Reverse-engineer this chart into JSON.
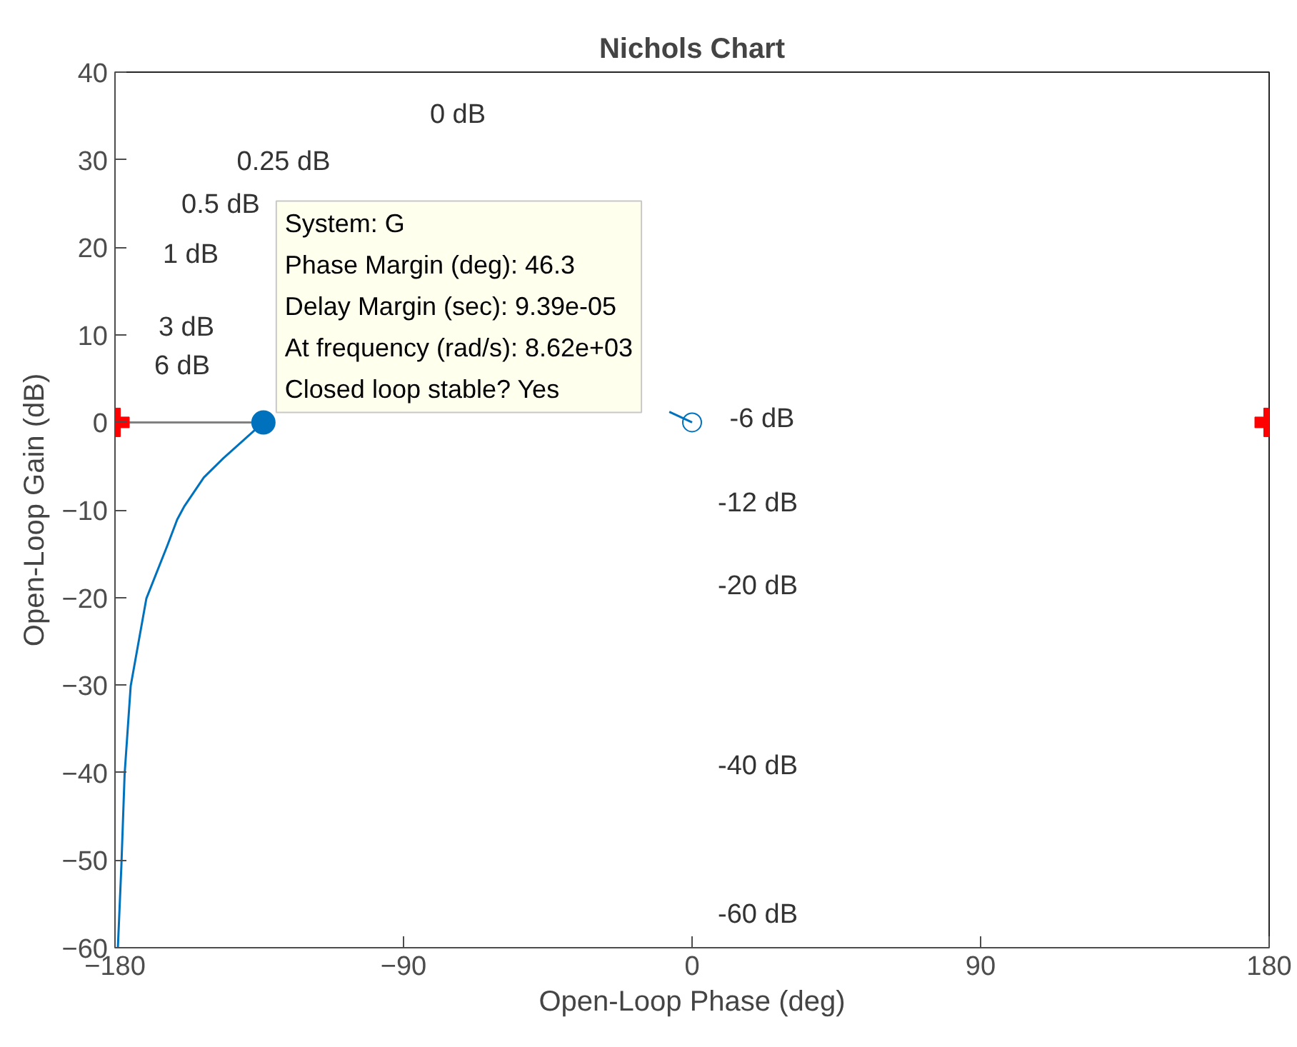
{
  "chart_data": {
    "type": "line",
    "title": "Nichols Chart",
    "xlabel": "Open-Loop Phase (deg)",
    "ylabel": "Open-Loop Gain (dB)",
    "xlim": [
      -180,
      180
    ],
    "ylim": [
      -60,
      40
    ],
    "xticks": [
      -180,
      -90,
      0,
      90,
      180
    ],
    "yticks": [
      -60,
      -50,
      -40,
      -30,
      -20,
      -10,
      0,
      10,
      20,
      30,
      40
    ],
    "grid": false,
    "series": [
      {
        "color": "#0072bd",
        "x": [
          -179.1,
          -178.0,
          -177.0,
          -175.1,
          -170.2,
          -163.7,
          -160.6,
          -158.4,
          -152.3,
          -146.2,
          -133.7,
          null,
          -7.1,
          0
        ],
        "values": [
          -60,
          -50.6,
          -40.2,
          -30.1,
          -20.1,
          -14.1,
          -11.1,
          -9.6,
          -6.3,
          -4.1,
          0,
          null,
          1.2,
          0
        ]
      },
      {
        "color": "#808080",
        "x": [
          -180,
          -133.7
        ],
        "values": [
          0,
          0
        ]
      },
      {
        "type": "scatter",
        "marker": "circle",
        "color": "#0072bd",
        "x": [
          -133.7
        ],
        "values": [
          0
        ]
      },
      {
        "type": "scatter",
        "marker": "circle_open",
        "color": "#0072bd",
        "x": [
          0
        ],
        "values": [
          0
        ]
      },
      {
        "type": "scatter",
        "marker": "cross",
        "color": "#ff0000",
        "x": [
          -180,
          180
        ],
        "values": [
          0,
          0
        ]
      }
    ],
    "annotations": [
      "0 dB",
      "0.25 dB",
      "0.5 dB",
      "1 dB",
      "3 dB",
      "6 dB",
      "-6 dB",
      "-12 dB",
      "-20 dB",
      "-40 dB",
      "-60 dB",
      {
        "text": "System: G\nPhase Margin (deg): 46.3\nDelay Margin (sec): 9.39e-05\nAt frequency (rad/s): 8.62e+03\nClosed loop stable? Yes",
        "x": -133.7,
        "y": 0
      }
    ]
  }
}
